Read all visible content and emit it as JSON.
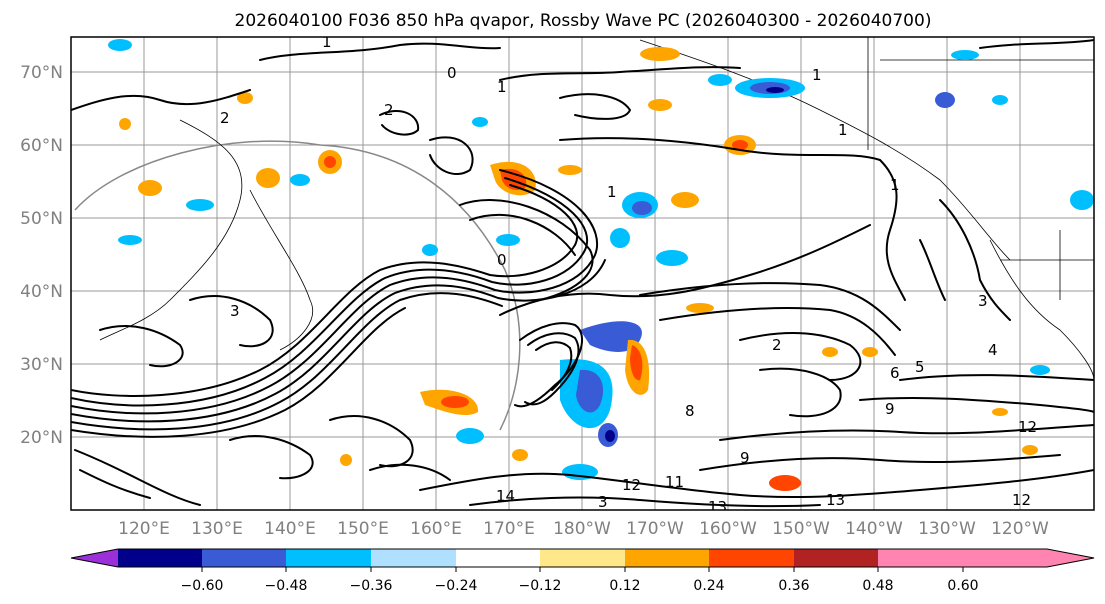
{
  "title": "2026040100 F036 850 hPa qvapor, Rossby Wave PC (2026040300 - 2026040700)",
  "lat_labels": [
    "70°N",
    "60°N",
    "50°N",
    "40°N",
    "30°N",
    "20°N"
  ],
  "lon_labels": [
    "120°E",
    "130°E",
    "140°E",
    "150°E",
    "160°E",
    "170°E",
    "180°W",
    "170°W",
    "160°W",
    "150°W",
    "140°W",
    "130°W",
    "120°W"
  ],
  "colorbar": {
    "colors": [
      "#9b30d9",
      "#00008b",
      "#3a5bd6",
      "#00bfff",
      "#b0e0ff",
      "#ffffff",
      "#ffe88a",
      "#ffa500",
      "#ff4500",
      "#b22222",
      "#ff85b0"
    ],
    "tick_labels": [
      "−0.60",
      "−0.48",
      "−0.36",
      "−0.24",
      "−0.12",
      "0.12",
      "0.24",
      "0.36",
      "0.48",
      "0.60"
    ]
  },
  "contour_labels": [
    "1",
    "0",
    "1",
    "1",
    "2",
    "2",
    "1",
    "1",
    "1",
    "0",
    "3",
    "8",
    "9",
    "2",
    "3",
    "14",
    "13",
    "12",
    "11",
    "12",
    "13",
    "3",
    "4",
    "5",
    "6",
    "9",
    "12"
  ]
}
